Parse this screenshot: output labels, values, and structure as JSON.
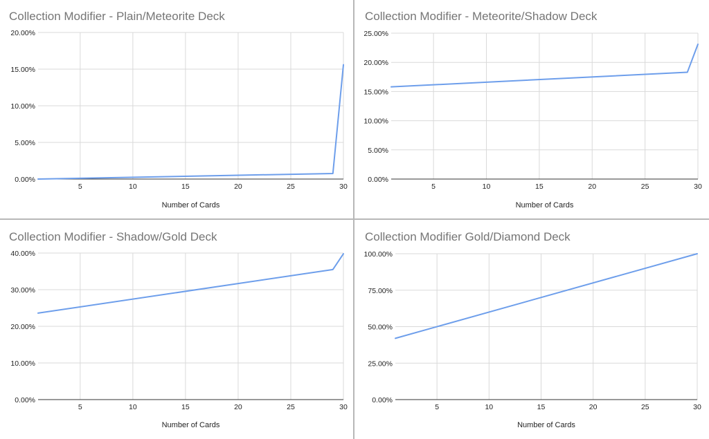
{
  "chart_data": [
    {
      "type": "line",
      "title": "Collection Modifier - Plain/Meteorite Deck",
      "xlabel": "Number of Cards",
      "ylabel": "",
      "xlim": [
        1,
        30
      ],
      "ylim": [
        0,
        0.2
      ],
      "x_ticks": [
        5,
        10,
        15,
        20,
        25,
        30
      ],
      "y_ticks": [
        0,
        0.05,
        0.1,
        0.15,
        0.2
      ],
      "y_tick_labels": [
        "0.00%",
        "5.00%",
        "10.00%",
        "15.00%",
        "20.00%"
      ],
      "color": "#6d9eeb",
      "series": [
        {
          "x": [
            1,
            29,
            30
          ],
          "values": [
            0.0,
            0.0076,
            0.156
          ]
        }
      ]
    },
    {
      "type": "line",
      "title": "Collection Modifier - Meteorite/Shadow Deck",
      "xlabel": "Number of Cards",
      "ylabel": "",
      "xlim": [
        1,
        30
      ],
      "ylim": [
        0,
        0.25
      ],
      "x_ticks": [
        5,
        10,
        15,
        20,
        25,
        30
      ],
      "y_ticks": [
        0,
        0.05,
        0.1,
        0.15,
        0.2,
        0.25
      ],
      "y_tick_labels": [
        "0.00%",
        "5.00%",
        "10.00%",
        "15.00%",
        "20.00%",
        "25.00%"
      ],
      "color": "#6d9eeb",
      "series": [
        {
          "x": [
            1,
            29,
            30
          ],
          "values": [
            0.158,
            0.183,
            0.231
          ]
        }
      ]
    },
    {
      "type": "line",
      "title": "Collection Modifier - Shadow/Gold Deck",
      "xlabel": "Number of Cards",
      "ylabel": "",
      "xlim": [
        1,
        30
      ],
      "ylim": [
        0,
        0.4
      ],
      "x_ticks": [
        5,
        10,
        15,
        20,
        25,
        30
      ],
      "y_ticks": [
        0,
        0.1,
        0.2,
        0.3,
        0.4
      ],
      "y_tick_labels": [
        "0.00%",
        "10.00%",
        "20.00%",
        "30.00%",
        "40.00%"
      ],
      "color": "#6d9eeb",
      "series": [
        {
          "x": [
            1,
            29,
            30
          ],
          "values": [
            0.236,
            0.355,
            0.398
          ]
        }
      ]
    },
    {
      "type": "line",
      "title": "Collection Modifier Gold/Diamond Deck",
      "xlabel": "Number of Cards",
      "ylabel": "",
      "xlim": [
        1,
        30
      ],
      "ylim": [
        0,
        1.0
      ],
      "x_ticks": [
        5,
        10,
        15,
        20,
        25,
        30
      ],
      "y_ticks": [
        0,
        0.25,
        0.5,
        0.75,
        1.0
      ],
      "y_tick_labels": [
        "0.00%",
        "25.00%",
        "50.00%",
        "75.00%",
        "100.00%"
      ],
      "color": "#6d9eeb",
      "series": [
        {
          "x": [
            1,
            30
          ],
          "values": [
            0.42,
            1.0
          ]
        }
      ]
    }
  ]
}
